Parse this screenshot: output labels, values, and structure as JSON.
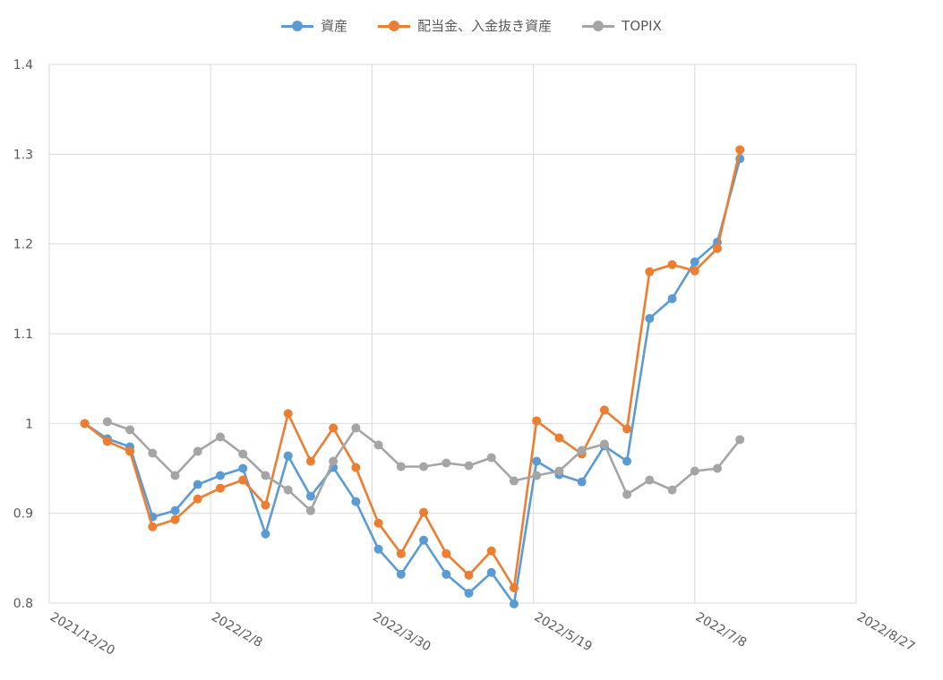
{
  "chart_data": {
    "type": "line",
    "title": "",
    "xlabel": "",
    "ylabel": "",
    "x_ticks": [
      "2021/12/20",
      "2022/2/8",
      "2022/3/30",
      "2022/5/19",
      "2022/7/8",
      "2022/8/27"
    ],
    "x_range": [
      "2021/12/20",
      "2022/8/27"
    ],
    "ylim": [
      0.8,
      1.4
    ],
    "y_ticks": [
      "0.8",
      "0.9",
      "1",
      "1.1",
      "1.2",
      "1.3",
      "1.4"
    ],
    "grid": true,
    "legend_position": "top",
    "dates": [
      "2021/12/31",
      "2022/1/7",
      "2022/1/14",
      "2022/1/21",
      "2022/1/28",
      "2022/2/4",
      "2022/2/11",
      "2022/2/18",
      "2022/2/25",
      "2022/3/4",
      "2022/3/11",
      "2022/3/18",
      "2022/3/25",
      "2022/4/1",
      "2022/4/8",
      "2022/4/15",
      "2022/4/22",
      "2022/4/29",
      "2022/5/6",
      "2022/5/13",
      "2022/5/20",
      "2022/5/27",
      "2022/6/3",
      "2022/6/10",
      "2022/6/17",
      "2022/6/24",
      "2022/7/1",
      "2022/7/8",
      "2022/7/15",
      "2022/7/22"
    ],
    "series": [
      {
        "name": "資産",
        "color": "#5b9bd5",
        "values": [
          1.0,
          0.983,
          0.974,
          0.896,
          0.903,
          0.932,
          0.942,
          0.95,
          0.877,
          0.964,
          0.919,
          0.951,
          0.913,
          0.86,
          0.832,
          0.87,
          0.832,
          0.811,
          0.834,
          0.799,
          0.958,
          0.943,
          0.935,
          0.975,
          0.958,
          1.117,
          1.139,
          1.18,
          1.202,
          1.295
        ]
      },
      {
        "name": "配当金、入金抜き資産",
        "color": "#ed7d31",
        "values": [
          1.0,
          0.98,
          0.969,
          0.885,
          0.893,
          0.916,
          0.928,
          0.937,
          0.909,
          1.011,
          0.958,
          0.995,
          0.951,
          0.889,
          0.855,
          0.901,
          0.855,
          0.831,
          0.858,
          0.817,
          1.003,
          0.984,
          0.966,
          1.015,
          0.994,
          1.169,
          1.177,
          1.17,
          1.195,
          1.305
        ]
      },
      {
        "name": "TOPIX",
        "color": "#a5a5a5",
        "values": [
          null,
          1.002,
          0.993,
          0.967,
          0.942,
          0.969,
          0.985,
          0.966,
          0.942,
          0.926,
          0.903,
          0.958,
          0.995,
          0.976,
          0.952,
          0.952,
          0.956,
          0.953,
          0.962,
          0.936,
          0.942,
          0.947,
          0.97,
          0.977,
          0.921,
          0.937,
          0.926,
          0.947,
          0.95,
          0.982
        ]
      }
    ]
  }
}
